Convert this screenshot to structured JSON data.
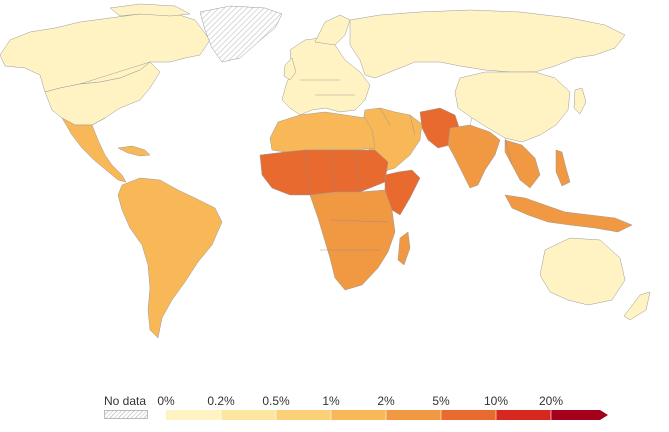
{
  "legend": {
    "no_data_label": "No data",
    "ticks": [
      "0%",
      "0.2%",
      "0.5%",
      "1%",
      "2%",
      "5%",
      "10%",
      "20%"
    ],
    "bins": [
      {
        "range": "0%–0.2%",
        "color": "#fff3c4"
      },
      {
        "range": "0.2%–0.5%",
        "color": "#fde7a0"
      },
      {
        "range": "0.5%–1%",
        "color": "#fbd077"
      },
      {
        "range": "1%–2%",
        "color": "#f9b858"
      },
      {
        "range": "2%–5%",
        "color": "#f19842"
      },
      {
        "range": "5%–10%",
        "color": "#e86a2e"
      },
      {
        "range": "10%–20%",
        "color": "#d6281e"
      },
      {
        "range": ">20%",
        "color": "#a4001c"
      }
    ]
  },
  "regions": {
    "greenland": "no-data",
    "north_america": "0%–0.2%",
    "central_america": "1%–2%",
    "south_america": "1%–2%",
    "europe": "0%–0.2%",
    "russia": "0%–0.2%",
    "north_africa": "1%–2%",
    "west_africa": "5%–10%",
    "sahel": "5%–10%",
    "horn_of_africa": "5%–10%",
    "central_south_africa": "2%–5%",
    "middle_east": "1%–2%",
    "pakistan_afghanistan": "5%–10%",
    "india": "2%–5%",
    "southeast_asia": "2%–5%",
    "china": "0%–0.2%",
    "australia": "0%–0.2%"
  }
}
